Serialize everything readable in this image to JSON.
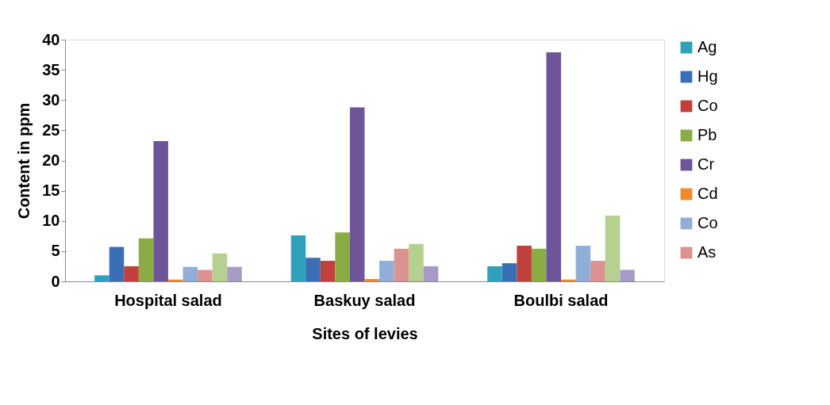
{
  "chart_data": {
    "type": "bar",
    "xlabel": "Sites of levies",
    "ylabel": "Content in ppm",
    "categories": [
      "Hospital salad",
      "Baskuy salad",
      "Boulbi salad"
    ],
    "series": [
      {
        "name": "Ag",
        "color": "#31a0bd",
        "values": [
          1.0,
          7.6,
          2.5
        ]
      },
      {
        "name": "Hg",
        "color": "#3a6fb5",
        "values": [
          5.7,
          3.9,
          3.0
        ]
      },
      {
        "name": "Co",
        "color": "#c0403c",
        "values": [
          2.5,
          3.4,
          5.9
        ]
      },
      {
        "name": "Pb",
        "color": "#8aac44",
        "values": [
          7.1,
          8.1,
          5.4
        ]
      },
      {
        "name": "Cr",
        "color": "#6e559a",
        "values": [
          23.2,
          28.8,
          37.9
        ]
      },
      {
        "name": "Cd",
        "color": "#f08a2e",
        "values": [
          0.3,
          0.4,
          0.3
        ]
      },
      {
        "name": "Co",
        "color": "#91aed8",
        "values": [
          2.4,
          3.4,
          5.9
        ]
      },
      {
        "name": "As",
        "color": "#dc9290",
        "values": [
          1.9,
          5.4,
          3.4
        ]
      },
      {
        "color": "#b6d08f",
        "values": [
          4.6,
          6.2,
          10.9
        ]
      },
      {
        "color": "#a89ac6",
        "values": [
          2.4,
          2.5,
          1.9
        ]
      }
    ],
    "ylim": [
      0,
      40
    ],
    "yticks": [
      0,
      5,
      10,
      15,
      20,
      25,
      30,
      35,
      40
    ],
    "grid": false,
    "legend": "right"
  }
}
